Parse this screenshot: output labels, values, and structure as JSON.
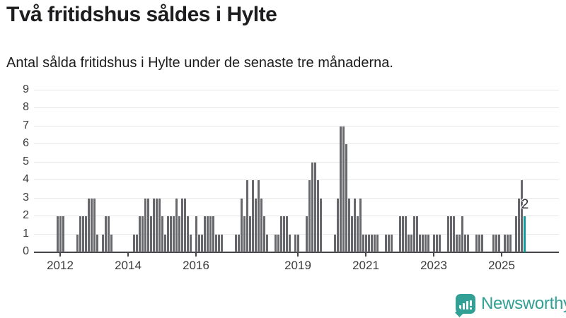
{
  "header": {
    "title": "Två fritidshus såldes i Hylte",
    "subtitle": "Antal sålda fritidshus i Hylte under de senaste tre månaderna."
  },
  "chart_data": {
    "type": "bar",
    "title": "Två fritidshus såldes i Hylte",
    "subtitle": "Antal sålda fritidshus i Hylte under de senaste tre månaderna.",
    "ylabel": "",
    "xlabel": "",
    "ylim": [
      0,
      9
    ],
    "yticks": [
      0,
      1,
      2,
      3,
      4,
      5,
      6,
      7,
      8,
      9
    ],
    "grid": "horizontal",
    "x_unit": "month",
    "x_start_approx": "2011-04",
    "xticks": [
      {
        "label": "2012",
        "index": 9
      },
      {
        "label": "2014",
        "index": 33
      },
      {
        "label": "2016",
        "index": 57
      },
      {
        "label": "2019",
        "index": 93
      },
      {
        "label": "2021",
        "index": 117
      },
      {
        "label": "2023",
        "index": 141
      },
      {
        "label": "2025",
        "index": 165
      }
    ],
    "values": [
      0,
      0,
      0,
      0,
      0,
      0,
      0,
      0,
      2,
      2,
      2,
      0,
      0,
      0,
      0,
      1,
      2,
      2,
      2,
      3,
      3,
      3,
      1,
      0,
      1,
      2,
      2,
      1,
      0,
      0,
      0,
      0,
      0,
      0,
      0,
      1,
      1,
      2,
      2,
      3,
      3,
      2,
      3,
      3,
      3,
      2,
      1,
      2,
      2,
      2,
      3,
      2,
      3,
      3,
      2,
      1,
      0,
      2,
      1,
      1,
      2,
      2,
      2,
      2,
      1,
      1,
      1,
      0,
      0,
      0,
      0,
      1,
      1,
      3,
      2,
      4,
      2,
      4,
      3,
      4,
      3,
      2,
      1,
      0,
      0,
      1,
      1,
      2,
      2,
      2,
      1,
      0,
      1,
      1,
      0,
      0,
      2,
      4,
      5,
      5,
      4,
      3,
      0,
      0,
      0,
      0,
      1,
      3,
      7,
      7,
      6,
      3,
      2,
      3,
      2,
      3,
      1,
      1,
      1,
      1,
      1,
      1,
      0,
      0,
      1,
      1,
      1,
      0,
      0,
      2,
      2,
      2,
      1,
      1,
      2,
      2,
      1,
      1,
      1,
      1,
      0,
      1,
      1,
      1,
      0,
      0,
      2,
      2,
      2,
      1,
      1,
      2,
      1,
      1,
      0,
      0,
      1,
      1,
      1,
      0,
      0,
      0,
      1,
      1,
      1,
      0,
      1,
      1,
      1,
      0,
      2,
      3,
      4,
      2
    ],
    "highlight": {
      "index": 173,
      "value": 2,
      "label": "2"
    }
  },
  "branding": {
    "logo_text": "Newsworthy"
  },
  "colors": {
    "bar": "#67686c",
    "highlight": "#11989d",
    "grid": "#e7e7e7",
    "axis": "#47474b",
    "text": "#1d1d1f",
    "brand": "#33a095"
  }
}
